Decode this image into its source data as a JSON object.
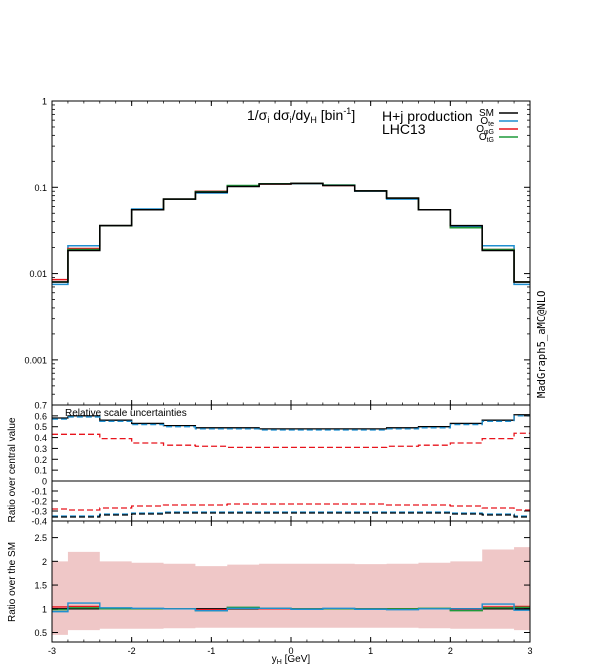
{
  "chart_data": [
    {
      "panel": "main",
      "type": "line",
      "step": true,
      "log_y": true,
      "ylim": [
        0.0003,
        1
      ],
      "xlim": [
        -3,
        3
      ],
      "yticks": [
        "1",
        "0.1",
        "0.01",
        "0.001"
      ],
      "annotations": {
        "title_prefix": "1/σ",
        "title_sub1": "i",
        "title_mid": " dσ",
        "title_sub2": "i",
        "title_mid2": "/dy",
        "title_sub3": "H",
        "title_mid3": " [bin",
        "title_sup": "-1",
        "title_end": "]",
        "process": "H+j production",
        "collider": "LHC13",
        "generator": "MadGraph5_aMC@NLO"
      },
      "bin_edges": [
        -3,
        -2.8,
        -2.4,
        -2,
        -1.6,
        -1.2,
        -0.8,
        -0.4,
        0,
        0.4,
        0.8,
        1.2,
        1.6,
        2,
        2.4,
        2.8,
        3
      ],
      "series": [
        {
          "name": "SM",
          "color": "#000000",
          "values": [
            0.008,
            0.0185,
            0.036,
            0.055,
            0.073,
            0.088,
            0.102,
            0.109,
            0.111,
            0.105,
            0.091,
            0.075,
            0.055,
            0.036,
            0.0185,
            0.008
          ]
        },
        {
          "name": "O",
          "sub": "te",
          "color": "#1f8fd0",
          "values": [
            0.0075,
            0.021,
            0.036,
            0.056,
            0.073,
            0.086,
            0.104,
            0.11,
            0.11,
            0.106,
            0.09,
            0.073,
            0.055,
            0.035,
            0.021,
            0.0075
          ]
        },
        {
          "name": "O",
          "sub": "φG",
          "color": "#e8141c",
          "values": [
            0.0085,
            0.0195,
            0.036,
            0.055,
            0.073,
            0.09,
            0.103,
            0.109,
            0.111,
            0.105,
            0.091,
            0.075,
            0.055,
            0.034,
            0.019,
            0.008
          ]
        },
        {
          "name": "O",
          "sub": "tG",
          "color": "#1f9a3a",
          "values": [
            0.008,
            0.019,
            0.036,
            0.055,
            0.073,
            0.089,
            0.105,
            0.11,
            0.111,
            0.106,
            0.091,
            0.075,
            0.055,
            0.034,
            0.019,
            0.008
          ]
        }
      ]
    },
    {
      "panel": "scale_uncertainty",
      "type": "line",
      "step": true,
      "ylabel": "Ratio over central value",
      "label": "Relative scale uncertainties",
      "ylim_upper": [
        0,
        0.7
      ],
      "ylim_lower": [
        -0.4,
        0
      ],
      "yticks_upper": [
        "0.7",
        "0.6",
        "0.5",
        "0.4",
        "0.3",
        "0.2",
        "0.1",
        "0"
      ],
      "yticks_lower": [
        "-0.1",
        "-0.2",
        "-0.3",
        "-0.4"
      ],
      "bin_edges": [
        -3,
        -2.8,
        -2.4,
        -2,
        -1.6,
        -1.2,
        -0.8,
        -0.4,
        0,
        0.4,
        0.8,
        1.2,
        1.6,
        2,
        2.4,
        2.8,
        3
      ],
      "series": [
        {
          "color": "#000000",
          "dash": false,
          "values": [
            0.58,
            0.6,
            0.56,
            0.53,
            0.51,
            0.49,
            0.49,
            0.48,
            0.48,
            0.48,
            0.48,
            0.49,
            0.5,
            0.53,
            0.56,
            0.61
          ]
        },
        {
          "color": "#1f8fd0",
          "dash": true,
          "values": [
            0.57,
            0.59,
            0.55,
            0.52,
            0.5,
            0.48,
            0.48,
            0.47,
            0.47,
            0.47,
            0.47,
            0.48,
            0.49,
            0.52,
            0.55,
            0.6
          ]
        },
        {
          "color": "#e8141c",
          "dash": true,
          "values": [
            0.43,
            0.43,
            0.39,
            0.35,
            0.33,
            0.32,
            0.31,
            0.31,
            0.31,
            0.31,
            0.31,
            0.32,
            0.33,
            0.35,
            0.39,
            0.44
          ]
        },
        {
          "color": "#e8141c",
          "dash": true,
          "values": [
            -0.28,
            -0.29,
            -0.27,
            -0.25,
            -0.24,
            -0.24,
            -0.23,
            -0.23,
            -0.23,
            -0.23,
            -0.23,
            -0.24,
            -0.24,
            -0.25,
            -0.27,
            -0.29
          ]
        },
        {
          "color": "#1f8fd0",
          "dash": true,
          "values": [
            -0.35,
            -0.35,
            -0.33,
            -0.32,
            -0.31,
            -0.31,
            -0.31,
            -0.31,
            -0.31,
            -0.31,
            -0.31,
            -0.31,
            -0.31,
            -0.32,
            -0.33,
            -0.35
          ]
        },
        {
          "color": "#000000",
          "dash": true,
          "values": [
            -0.36,
            -0.36,
            -0.34,
            -0.33,
            -0.32,
            -0.32,
            -0.32,
            -0.32,
            -0.32,
            -0.32,
            -0.32,
            -0.32,
            -0.32,
            -0.33,
            -0.34,
            -0.36
          ]
        }
      ]
    },
    {
      "panel": "ratio_sm",
      "type": "line",
      "step": true,
      "ylabel": "Ratio over the SM",
      "xlabel_main": "y",
      "xlabel_sub": "H",
      "xlabel_unit": " [GeV]",
      "ylim": [
        0.3,
        2.85
      ],
      "yticks": [
        "2.5",
        "2",
        "1.5",
        "1",
        "0.5"
      ],
      "xticks": [
        "-3",
        "-2",
        "-1",
        "0",
        "1",
        "2",
        "3"
      ],
      "band": {
        "color": "#efc7c7",
        "upper": [
          2.0,
          2.2,
          2.0,
          1.97,
          1.95,
          1.9,
          1.93,
          1.95,
          1.95,
          1.95,
          1.94,
          1.95,
          1.97,
          2.0,
          2.25,
          2.3
        ],
        "lower": [
          0.45,
          0.55,
          0.58,
          0.58,
          0.59,
          0.6,
          0.6,
          0.6,
          0.6,
          0.6,
          0.6,
          0.6,
          0.59,
          0.58,
          0.58,
          0.55
        ]
      },
      "bin_edges": [
        -3,
        -2.8,
        -2.4,
        -2,
        -1.6,
        -1.2,
        -0.8,
        -0.4,
        0,
        0.4,
        0.8,
        1.2,
        1.6,
        2,
        2.4,
        2.8,
        3
      ],
      "series": [
        {
          "color": "#000000",
          "values": [
            1.0,
            1.0,
            1.0,
            1.0,
            1.0,
            1.0,
            1.0,
            1.0,
            1.0,
            1.0,
            1.0,
            1.0,
            1.0,
            1.0,
            1.0,
            1.0
          ]
        },
        {
          "color": "#e8141c",
          "values": [
            1.04,
            1.05,
            1.01,
            1.0,
            1.0,
            0.98,
            1.02,
            1.0,
            1.0,
            1.0,
            1.0,
            1.0,
            1.0,
            0.97,
            1.04,
            1.05
          ]
        },
        {
          "color": "#1f9a3a",
          "values": [
            0.98,
            1.02,
            1.0,
            1.0,
            1.0,
            0.96,
            1.03,
            1.01,
            1.0,
            1.0,
            1.0,
            1.0,
            1.01,
            0.96,
            1.02,
            1.03
          ]
        },
        {
          "color": "#1f8fd0",
          "values": [
            0.94,
            1.12,
            1.02,
            1.01,
            1.0,
            0.96,
            1.01,
            1.01,
            0.99,
            1.01,
            0.99,
            0.98,
            1.0,
            1.0,
            1.1,
            0.97
          ]
        }
      ]
    }
  ]
}
